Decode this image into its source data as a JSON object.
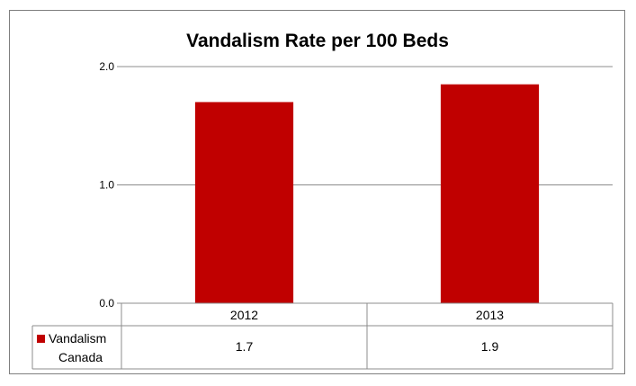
{
  "chart_data": {
    "type": "bar",
    "title": "Vandalism Rate per 100 Beds",
    "categories": [
      "2012",
      "2013"
    ],
    "series": [
      {
        "name": "Vandalism Canada",
        "name_lines": [
          "Vandalism",
          "Canada"
        ],
        "values": [
          1.7,
          1.85
        ],
        "table_values": [
          "1.7",
          "1.9"
        ],
        "color": "#c00000"
      }
    ],
    "yticks": [
      "0.0",
      "1.0",
      "2.0"
    ],
    "ylim": [
      0,
      2
    ],
    "xlabel": "",
    "ylabel": "",
    "grid": true,
    "legend": "data-table"
  }
}
